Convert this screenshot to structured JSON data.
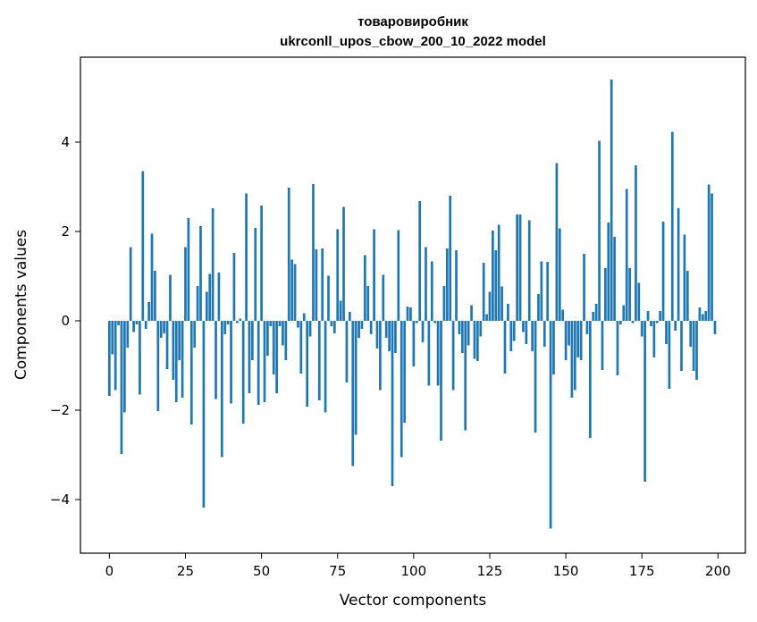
{
  "chart_data": {
    "type": "bar",
    "title": "товаровиробник",
    "subtitle": "ukrconll_upos_cbow_200_10_2022 model",
    "xlabel": "Vector components",
    "ylabel": "Components values",
    "xlim": [
      -9.5,
      209
    ],
    "ylim": [
      -5.2,
      5.9
    ],
    "xticks": [
      0,
      25,
      50,
      75,
      100,
      125,
      150,
      175,
      200
    ],
    "xtick_labels": [
      "0",
      "25",
      "50",
      "75",
      "100",
      "125",
      "150",
      "175",
      "200"
    ],
    "yticks": [
      -4,
      -2,
      0,
      2,
      4
    ],
    "ytick_labels": [
      "−4",
      "−2",
      "0",
      "2",
      "4"
    ],
    "grid": false,
    "bar_color": "#1f77b4",
    "x": [
      0,
      1,
      2,
      3,
      4,
      5,
      6,
      7,
      8,
      9,
      10,
      11,
      12,
      13,
      14,
      15,
      16,
      17,
      18,
      19,
      20,
      21,
      22,
      23,
      24,
      25,
      26,
      27,
      28,
      29,
      30,
      31,
      32,
      33,
      34,
      35,
      36,
      37,
      38,
      39,
      40,
      41,
      42,
      43,
      44,
      45,
      46,
      47,
      48,
      49,
      50,
      51,
      52,
      53,
      54,
      55,
      56,
      57,
      58,
      59,
      60,
      61,
      62,
      63,
      64,
      65,
      66,
      67,
      68,
      69,
      70,
      71,
      72,
      73,
      74,
      75,
      76,
      77,
      78,
      79,
      80,
      81,
      82,
      83,
      84,
      85,
      86,
      87,
      88,
      89,
      90,
      91,
      92,
      93,
      94,
      95,
      96,
      97,
      98,
      99,
      100,
      101,
      102,
      103,
      104,
      105,
      106,
      107,
      108,
      109,
      110,
      111,
      112,
      113,
      114,
      115,
      116,
      117,
      118,
      119,
      120,
      121,
      122,
      123,
      124,
      125,
      126,
      127,
      128,
      129,
      130,
      131,
      132,
      133,
      134,
      135,
      136,
      137,
      138,
      139,
      140,
      141,
      142,
      143,
      144,
      145,
      146,
      147,
      148,
      149,
      150,
      151,
      152,
      153,
      154,
      155,
      156,
      157,
      158,
      159,
      160,
      161,
      162,
      163,
      164,
      165,
      166,
      167,
      168,
      169,
      170,
      171,
      172,
      173,
      174,
      175,
      176,
      177,
      178,
      179,
      180,
      181,
      182,
      183,
      184,
      185,
      186,
      187,
      188,
      189,
      190,
      191,
      192,
      193,
      194,
      195,
      196,
      197,
      198,
      199
    ],
    "values": [
      -1.68,
      -0.75,
      -1.55,
      -0.1,
      -2.98,
      -2.05,
      -0.6,
      1.65,
      -0.25,
      -0.08,
      -1.65,
      3.35,
      -0.18,
      0.42,
      1.95,
      1.12,
      -2.02,
      -0.38,
      -0.28,
      -1.08,
      1.03,
      -1.32,
      -1.82,
      -0.88,
      -1.72,
      1.65,
      2.3,
      -2.32,
      -0.6,
      0.78,
      2.12,
      -4.18,
      0.65,
      1.05,
      2.52,
      -1.75,
      1.08,
      -3.05,
      -0.3,
      -0.08,
      -1.85,
      1.52,
      -0.05,
      0.05,
      -2.3,
      2.85,
      -1.62,
      -0.88,
      2.08,
      -1.88,
      2.58,
      -1.82,
      -0.78,
      -0.12,
      -1.2,
      -1.62,
      -0.12,
      -0.55,
      -0.88,
      2.98,
      1.37,
      1.27,
      -0.15,
      -1.18,
      0.17,
      -1.92,
      -0.35,
      3.06,
      1.6,
      -1.78,
      1.62,
      -2.05,
      1.01,
      -0.12,
      -0.28,
      2.05,
      0.45,
      2.55,
      -1.38,
      0.2,
      -3.25,
      -2.55,
      -0.38,
      -0.18,
      1.47,
      0.78,
      -0.3,
      2.05,
      -0.62,
      -1.55,
      1.03,
      -0.38,
      -0.68,
      -3.7,
      -0.72,
      2.03,
      -3.05,
      -2.28,
      0.32,
      0.3,
      -1.02,
      -0.05,
      2.68,
      -0.48,
      1.65,
      -1.45,
      1.33,
      -0.05,
      -1.45,
      -2.68,
      0.78,
      1.62,
      2.8,
      -1.55,
      1.58,
      -0.3,
      -0.72,
      -2.45,
      -0.55,
      0.35,
      -0.85,
      -0.9,
      -0.35,
      1.3,
      0.15,
      0.65,
      2.02,
      1.58,
      2.15,
      0.77,
      -1.18,
      0.38,
      -0.68,
      -0.45,
      2.38,
      2.38,
      -0.25,
      -0.52,
      2.25,
      -0.68,
      -2.5,
      0.6,
      1.33,
      -0.58,
      1.32,
      -4.65,
      -1.2,
      3.53,
      2.07,
      0.25,
      -0.88,
      -0.55,
      -1.72,
      -1.55,
      -0.82,
      -0.88,
      1.5,
      -0.3,
      -2.62,
      0.2,
      0.38,
      4.03,
      -1.1,
      1.18,
      2.2,
      5.4,
      1.88,
      -1.22,
      -0.08,
      0.35,
      2.95,
      1.18,
      -0.05,
      3.48,
      0.85,
      -0.35,
      -3.6,
      0.22,
      -0.12,
      -0.82,
      -0.05,
      0.22,
      2.22,
      -0.52,
      -1.52,
      4.23,
      -0.22,
      2.52,
      -1.12,
      1.93,
      1.12,
      -0.58,
      -1.12,
      -1.32,
      0.3,
      0.15,
      0.22,
      3.05,
      2.85,
      -0.3
    ]
  }
}
